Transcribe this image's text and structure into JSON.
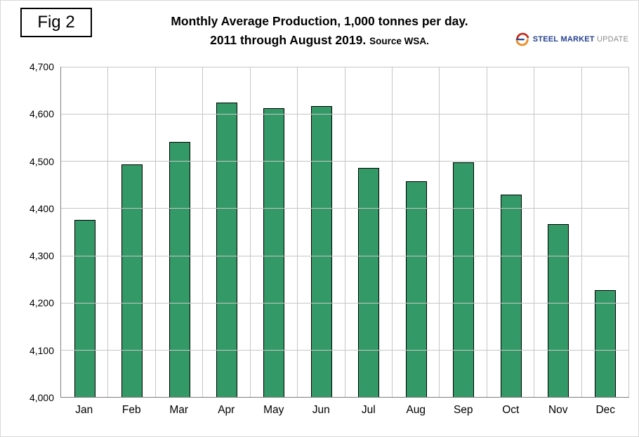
{
  "figure": {
    "label": "Fig 2"
  },
  "title": {
    "line1": "Monthly Average Production, 1,000 tonnes per day.",
    "line2": "2011 through August 2019.",
    "source": "Source WSA."
  },
  "logo": {
    "steel": "STEEL",
    "market": "MARKET",
    "update": "UPDATE"
  },
  "colors": {
    "bar": "#339966",
    "bar_border": "#000000",
    "grid": "#c6c6c6",
    "axis": "#7f7f7f",
    "logo_blue": "#24418e",
    "logo_gray": "#8c8c8c",
    "logo_red": "#c42b1c",
    "logo_orange": "#ef8a1d"
  },
  "chart_data": {
    "type": "bar",
    "categories": [
      "Jan",
      "Feb",
      "Mar",
      "Apr",
      "May",
      "Jun",
      "Jul",
      "Aug",
      "Sep",
      "Oct",
      "Nov",
      "Dec"
    ],
    "values": [
      4375,
      4493,
      4541,
      4624,
      4612,
      4617,
      4486,
      4458,
      4497,
      4429,
      4367,
      4226
    ],
    "title": "Monthly Average Production, 1,000 tonnes per day. 2011 through August 2019. Source WSA.",
    "xlabel": "",
    "ylabel": "",
    "ylim": [
      4000,
      4700
    ],
    "ytick_step": 100,
    "ytick_labels": [
      "4,000",
      "4,100",
      "4,200",
      "4,300",
      "4,400",
      "4,500",
      "4,600",
      "4,700"
    ],
    "grid": true,
    "legend": "none",
    "bar_color": "#339966"
  }
}
